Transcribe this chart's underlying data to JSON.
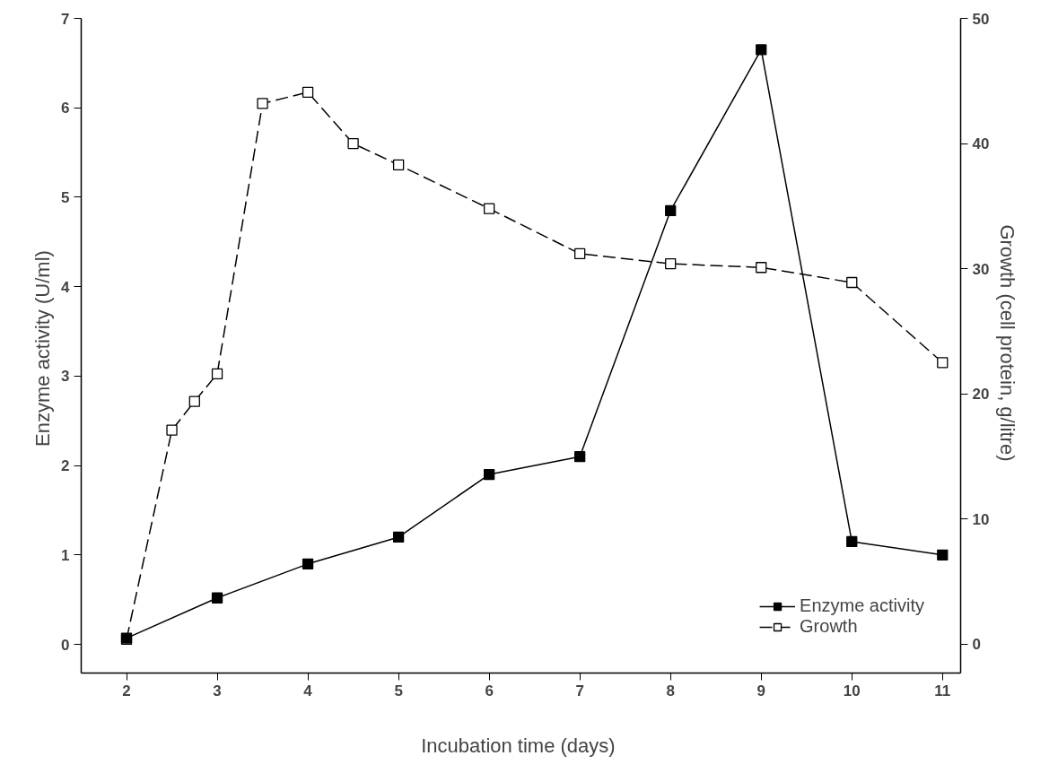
{
  "chart_data": {
    "type": "line",
    "xlabel": "Incubation time  (days)",
    "ylabel": "Enzyme activity  (U/ml)",
    "y2label": "Growth  (cell protein, g/litre)",
    "xlim": [
      1.5,
      11.2
    ],
    "xticks": [
      2,
      3,
      4,
      5,
      6,
      7,
      8,
      9,
      10,
      11
    ],
    "ylim": [
      -0.32,
      7
    ],
    "yticks": [
      0,
      1,
      2,
      3,
      4,
      5,
      6,
      7
    ],
    "y2lim": [
      -2.3,
      50
    ],
    "y2ticks": [
      0,
      10,
      20,
      30,
      40,
      50
    ],
    "grid": false,
    "legend": "bottom right",
    "series": [
      {
        "name": "Enzyme activity",
        "color": "#000000",
        "marker": "square",
        "line_style": "solid",
        "x": [
          2,
          3,
          4,
          5,
          6,
          7,
          8,
          9,
          10,
          11
        ],
        "values": [
          0.07,
          0.52,
          0.9,
          1.2,
          1.9,
          2.1,
          4.85,
          6.65,
          1.15,
          1.0
        ]
      },
      {
        "name": "Growth",
        "color": "#000000",
        "marker": "square_open",
        "line_style": "dashed",
        "axis": "y2",
        "x": [
          2,
          2.5,
          2.75,
          3,
          3.5,
          4,
          4.5,
          5,
          6,
          7,
          8,
          9,
          10,
          11
        ],
        "values": [
          0.4,
          17.1,
          19.4,
          21.6,
          43.2,
          44.1,
          40.0,
          38.3,
          34.8,
          31.2,
          30.4,
          30.1,
          28.9,
          22.5
        ]
      }
    ]
  }
}
